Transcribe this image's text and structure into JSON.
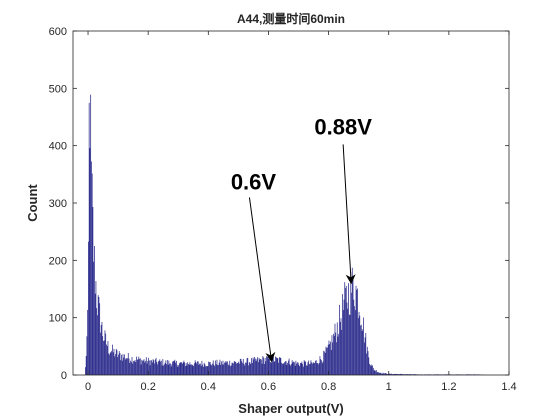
{
  "chart_data": {
    "type": "bar",
    "title": "A44,测量时间60min",
    "xlabel": "Shaper output(V)",
    "ylabel": "Count",
    "xlim": [
      -0.05,
      1.4
    ],
    "ylim": [
      0,
      600
    ],
    "xticks": [
      "0",
      "0.2",
      "0.4",
      "0.6",
      "0.8",
      "1",
      "1.2",
      "1.4"
    ],
    "yticks": [
      "0",
      "100",
      "200",
      "300",
      "400",
      "500",
      "600"
    ],
    "xtick_values": [
      0,
      0.2,
      0.4,
      0.6,
      0.8,
      1.0,
      1.2,
      1.4
    ],
    "ytick_values": [
      0,
      100,
      200,
      300,
      400,
      500,
      600
    ],
    "grid": false,
    "bar_color": "#2b2b8c",
    "histogram_envelope": {
      "x": [
        -0.01,
        0.0,
        0.005,
        0.01,
        0.02,
        0.03,
        0.05,
        0.07,
        0.1,
        0.15,
        0.2,
        0.3,
        0.4,
        0.5,
        0.55,
        0.6,
        0.65,
        0.7,
        0.75,
        0.78,
        0.8,
        0.82,
        0.84,
        0.85,
        0.86,
        0.87,
        0.88,
        0.89,
        0.9,
        0.91,
        0.92,
        0.93,
        0.94,
        0.95,
        0.97,
        1.0,
        1.1,
        1.2,
        1.3,
        1.33
      ],
      "y": [
        0,
        100,
        540,
        350,
        200,
        130,
        70,
        45,
        35,
        28,
        24,
        20,
        20,
        22,
        24,
        28,
        25,
        20,
        20,
        30,
        45,
        70,
        100,
        120,
        135,
        145,
        155,
        150,
        130,
        105,
        70,
        40,
        20,
        10,
        4,
        2,
        1,
        1,
        1,
        0
      ]
    },
    "annotations": [
      {
        "text": "0.6V",
        "target": [
          0.61,
          22
        ]
      },
      {
        "text": "0.88V",
        "target": [
          0.875,
          158
        ]
      }
    ]
  }
}
